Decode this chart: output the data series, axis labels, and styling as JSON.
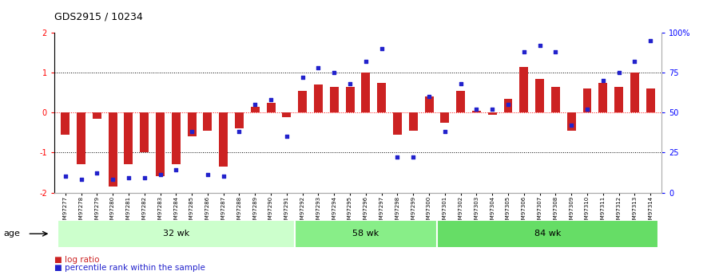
{
  "title": "GDS2915 / 10234",
  "samples": [
    "GSM97277",
    "GSM97278",
    "GSM97279",
    "GSM97280",
    "GSM97281",
    "GSM97282",
    "GSM97283",
    "GSM97284",
    "GSM97285",
    "GSM97286",
    "GSM97287",
    "GSM97288",
    "GSM97289",
    "GSM97290",
    "GSM97291",
    "GSM97292",
    "GSM97293",
    "GSM97294",
    "GSM97295",
    "GSM97296",
    "GSM97297",
    "GSM97298",
    "GSM97299",
    "GSM97300",
    "GSM97301",
    "GSM97302",
    "GSM97303",
    "GSM97304",
    "GSM97305",
    "GSM97306",
    "GSM97307",
    "GSM97308",
    "GSM97309",
    "GSM97310",
    "GSM97311",
    "GSM97312",
    "GSM97313",
    "GSM97314"
  ],
  "log_ratio": [
    -0.55,
    -1.3,
    -0.15,
    -1.85,
    -1.3,
    -1.0,
    -1.6,
    -1.3,
    -0.6,
    -0.45,
    -1.35,
    -0.4,
    0.15,
    0.25,
    -0.12,
    0.55,
    0.7,
    0.65,
    0.65,
    1.0,
    0.75,
    -0.55,
    -0.45,
    0.4,
    -0.25,
    0.55,
    0.05,
    -0.05,
    0.35,
    1.15,
    0.85,
    0.65,
    -0.45,
    0.6,
    0.75,
    0.65,
    1.0,
    0.6
  ],
  "percentile": [
    10,
    8,
    12,
    8,
    9,
    9,
    11,
    14,
    38,
    11,
    10,
    38,
    55,
    58,
    35,
    72,
    78,
    75,
    68,
    82,
    90,
    22,
    22,
    60,
    38,
    68,
    52,
    52,
    55,
    88,
    92,
    88,
    42,
    52,
    70,
    75,
    82,
    95
  ],
  "groups": [
    {
      "label": "32 wk",
      "start": 0,
      "end": 15,
      "color": "#ccffcc"
    },
    {
      "label": "58 wk",
      "start": 15,
      "end": 24,
      "color": "#88ee88"
    },
    {
      "label": "84 wk",
      "start": 24,
      "end": 38,
      "color": "#66dd66"
    }
  ],
  "bar_color": "#cc2222",
  "dot_color": "#2222cc",
  "ylim": [
    -2,
    2
  ],
  "yticks_left": [
    -2,
    -1,
    0,
    1,
    2
  ],
  "yticks_right": [
    0,
    25,
    50,
    75,
    100
  ],
  "hlines": [
    -1,
    0,
    1
  ],
  "hline_colors": [
    "black",
    "red",
    "black"
  ],
  "hline_styles": [
    "dotted",
    "dotted",
    "dotted"
  ],
  "bar_width": 0.55,
  "age_label": "age"
}
